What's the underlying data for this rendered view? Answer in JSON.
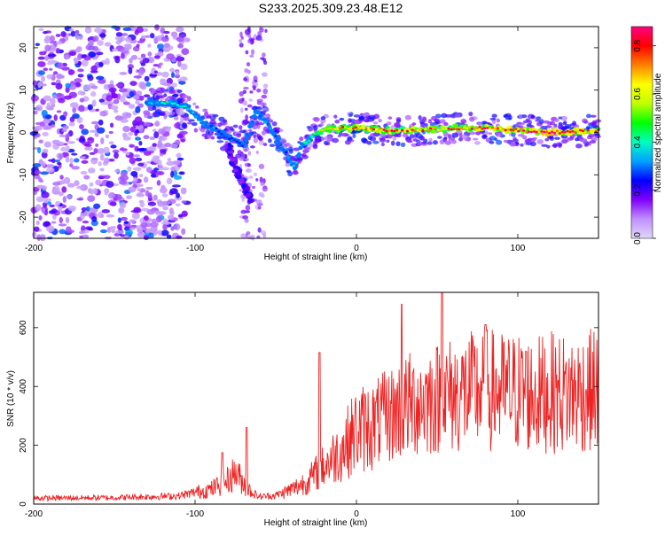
{
  "title": "S233.2025.309.23.48.E12",
  "chart_data": [
    {
      "type": "heatmap",
      "xlabel": "Height of straight line (km)",
      "ylabel": "Frequency (Hz)",
      "xlim": [
        -200,
        150
      ],
      "ylim": [
        -25,
        25
      ],
      "xticks": [
        "-200",
        "-100",
        "0",
        "100"
      ],
      "yticks": [
        "20",
        "10",
        "0",
        "-10",
        "-20"
      ],
      "colorbar": {
        "label": "Normalized spectral amplitude",
        "range": [
          0,
          0.88
        ],
        "ticks": [
          "0.0",
          "0.2",
          "0.4",
          "0.6",
          "0.8"
        ],
        "colors": [
          "#e0d8f8",
          "#c090ff",
          "#8000ff",
          "#0000ff",
          "#00a0ff",
          "#00ffc0",
          "#00ff00",
          "#c0ff00",
          "#ffff00",
          "#ff8000",
          "#ff0000",
          "#ff0080"
        ]
      },
      "ridge": {
        "x": [
          -130,
          -115,
          -105,
          -95,
          -88,
          -80,
          -70,
          -62,
          -55,
          -48,
          -42,
          -38,
          -34,
          -30,
          -25,
          -15,
          0,
          20,
          40,
          60,
          80,
          100,
          120,
          150
        ],
        "y": [
          7,
          7,
          6,
          2,
          1,
          -1,
          -3,
          5,
          2,
          -2,
          -6,
          -8,
          -3,
          -2,
          0,
          1,
          1,
          0.5,
          0.5,
          1,
          1,
          0.5,
          0,
          0.5
        ],
        "amp": [
          0.35,
          0.4,
          0.4,
          0.35,
          0.3,
          0.25,
          0.25,
          0.3,
          0.3,
          0.3,
          0.3,
          0.35,
          0.35,
          0.45,
          0.55,
          0.65,
          0.75,
          0.75,
          0.7,
          0.75,
          0.78,
          0.8,
          0.85,
          0.8
        ]
      },
      "secondary_branch": {
        "x": [
          -80,
          -75,
          -70,
          -65
        ],
        "y": [
          -3,
          -8,
          -12,
          -16
        ]
      }
    },
    {
      "type": "line",
      "xlabel": "Height of straight line (km)",
      "ylabel": "SNR (10 * v/v)",
      "xlim": [
        -200,
        150
      ],
      "ylim": [
        0,
        720
      ],
      "xticks": [
        "-200",
        "-100",
        "0",
        "100"
      ],
      "yticks": [
        "600",
        "400",
        "200",
        "0"
      ],
      "color": "#ee2222",
      "baseline": {
        "x": [
          -200,
          -150,
          -110,
          -100,
          -90,
          -80,
          -75,
          -70,
          -65,
          -60,
          -50,
          -40,
          -30,
          -20,
          -10,
          0,
          10,
          20,
          30,
          40,
          50,
          60,
          70,
          80,
          90,
          100,
          110,
          120,
          130,
          140,
          150
        ],
        "y": [
          20,
          22,
          28,
          40,
          50,
          80,
          110,
          70,
          40,
          25,
          30,
          50,
          80,
          130,
          180,
          250,
          270,
          300,
          330,
          350,
          360,
          370,
          380,
          390,
          380,
          380,
          370,
          380,
          375,
          380,
          390
        ]
      },
      "peaks": [
        {
          "x": -83,
          "y": 175
        },
        {
          "x": -68,
          "y": 260
        },
        {
          "x": -23,
          "y": 515
        },
        {
          "x": 28,
          "y": 680
        },
        {
          "x": 53,
          "y": 720
        },
        {
          "x": 80,
          "y": 610
        },
        {
          "x": 105,
          "y": 520
        }
      ]
    }
  ]
}
